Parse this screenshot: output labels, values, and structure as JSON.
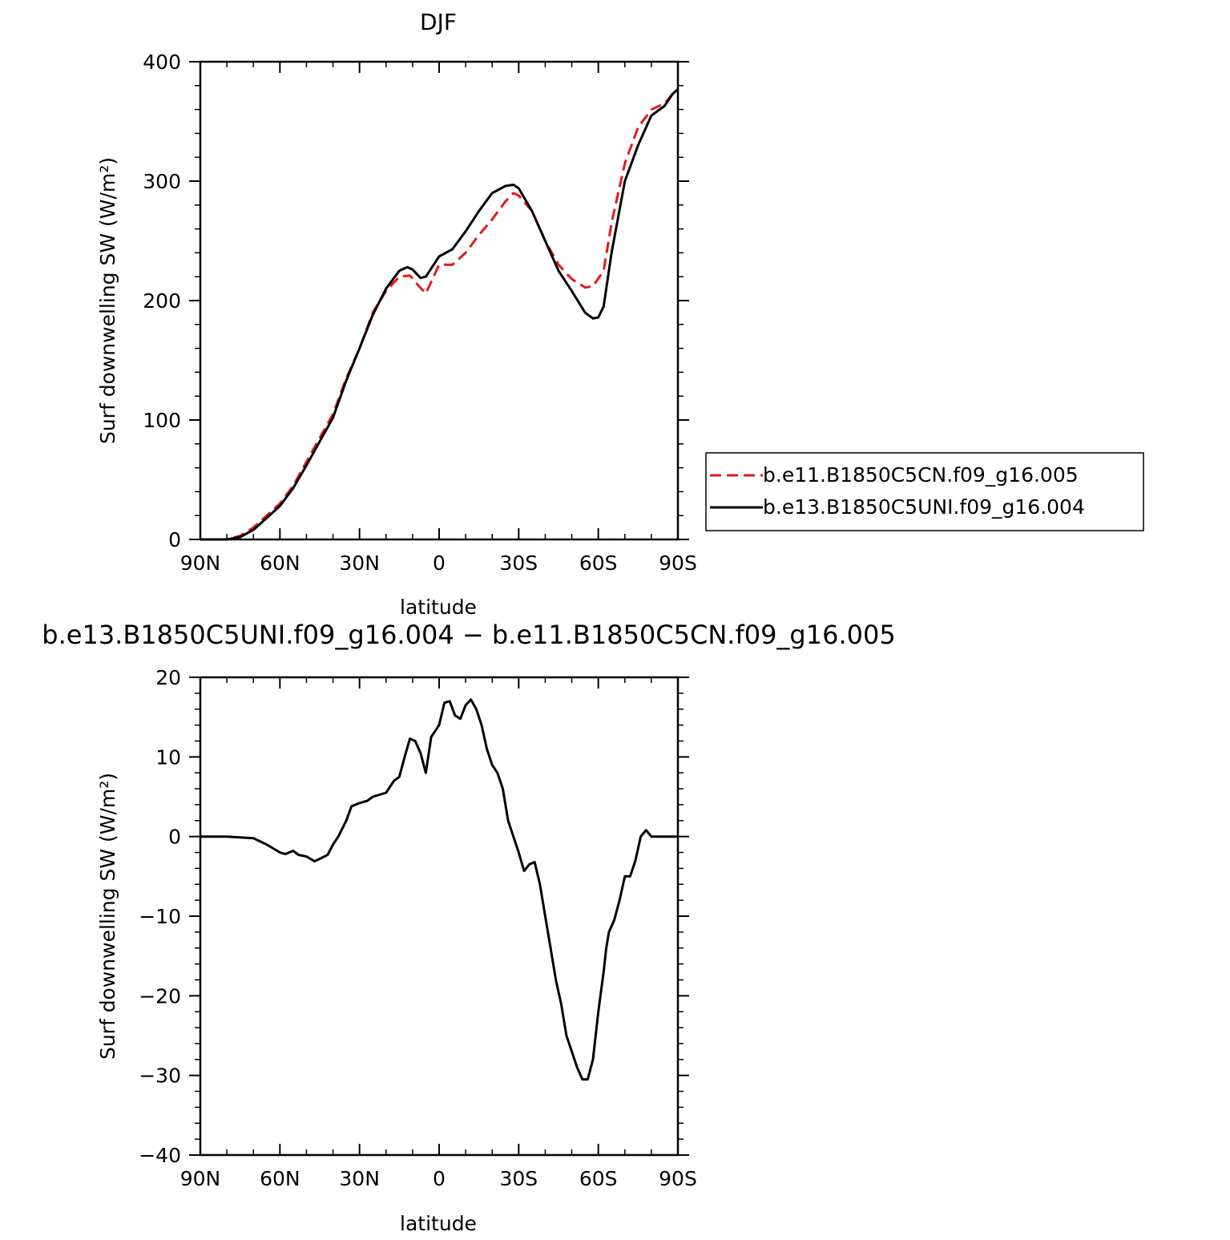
{
  "chart_data": [
    {
      "type": "line",
      "title": "DJF",
      "xlabel": "latitude",
      "ylabel": "Surf downwelling SW (W/m²)",
      "xlim": [
        -90,
        90
      ],
      "ylim": [
        0,
        400
      ],
      "x_ticks": [
        "90N",
        "60N",
        "30N",
        "0",
        "30S",
        "60S",
        "90S"
      ],
      "y_ticks": [
        "0",
        "100",
        "200",
        "300",
        "400"
      ],
      "grid": false,
      "legend_position": "right",
      "series": [
        {
          "name": "b.e11.B1850C5CN.f09_g16.005",
          "color": "#e31a1c",
          "dash": "dashed",
          "x": [
            -90,
            -80,
            -75,
            -70,
            -65,
            -60,
            -55,
            -50,
            -45,
            -40,
            -35,
            -30,
            -25,
            -20,
            -15,
            -11,
            -8,
            -5,
            0,
            5,
            10,
            15,
            20,
            25,
            28,
            30,
            35,
            40,
            45,
            50,
            55,
            58,
            62,
            65,
            70,
            75,
            80,
            85,
            88,
            90
          ],
          "y": [
            0,
            0,
            3,
            10,
            20,
            30,
            45,
            65,
            85,
            105,
            135,
            160,
            190,
            208,
            220,
            221,
            213,
            206,
            230,
            230,
            240,
            255,
            268,
            283,
            290,
            288,
            275,
            250,
            230,
            218,
            211,
            212,
            225,
            265,
            315,
            345,
            360,
            365,
            373,
            377
          ]
        },
        {
          "name": "b.e13.B1850C5UNI.f09_g16.004",
          "color": "#000000",
          "dash": "solid",
          "x": [
            -90,
            -80,
            -75,
            -70,
            -65,
            -60,
            -55,
            -50,
            -45,
            -40,
            -35,
            -30,
            -25,
            -20,
            -15,
            -12,
            -10,
            -7,
            -5,
            0,
            5,
            10,
            15,
            20,
            25,
            28,
            30,
            35,
            40,
            45,
            50,
            55,
            58,
            60,
            62,
            65,
            70,
            75,
            80,
            85,
            88,
            90
          ],
          "y": [
            0,
            0,
            2,
            8,
            18,
            28,
            43,
            62,
            82,
            102,
            133,
            160,
            188,
            210,
            225,
            228,
            226,
            219,
            220,
            237,
            243,
            258,
            275,
            290,
            296,
            297,
            294,
            275,
            250,
            225,
            208,
            190,
            185,
            186,
            195,
            240,
            300,
            330,
            355,
            363,
            373,
            377
          ]
        }
      ]
    },
    {
      "type": "line",
      "title": "b.e13.B1850C5UNI.f09_g16.004 − b.e11.B1850C5CN.f09_g16.005",
      "xlabel": "latitude",
      "ylabel": "Surf downwelling SW (W/m²)",
      "xlim": [
        -90,
        90
      ],
      "ylim": [
        -40,
        20
      ],
      "x_ticks": [
        "90N",
        "60N",
        "30N",
        "0",
        "30S",
        "60S",
        "90S"
      ],
      "y_ticks": [
        "−40",
        "−30",
        "−20",
        "−10",
        "0",
        "10",
        "20"
      ],
      "grid": false,
      "series": [
        {
          "color": "#000000",
          "dash": "solid",
          "x": [
            -90,
            -80,
            -70,
            -65,
            -60,
            -58,
            -55,
            -53,
            -50,
            -47,
            -45,
            -42,
            -40,
            -38,
            -35,
            -33,
            -30,
            -27,
            -25,
            -22,
            -20,
            -17,
            -15,
            -13,
            -11,
            -9,
            -7,
            -5,
            -3,
            0,
            2,
            4,
            6,
            8,
            10,
            12,
            14,
            16,
            18,
            20,
            22,
            24,
            26,
            28,
            30,
            32,
            34,
            36,
            38,
            40,
            42,
            44,
            46,
            48,
            50,
            52,
            54,
            56,
            58,
            60,
            62,
            63,
            64,
            66,
            68,
            70,
            72,
            74,
            76,
            78,
            80,
            82,
            84,
            86,
            88,
            90
          ],
          "y": [
            0,
            0,
            -0.2,
            -1,
            -2,
            -2.2,
            -1.8,
            -2.3,
            -2.5,
            -3.1,
            -2.8,
            -2.3,
            -1,
            0,
            2,
            3.8,
            4.2,
            4.5,
            5,
            5.3,
            5.5,
            7,
            7.5,
            10,
            12.3,
            12,
            10.5,
            8,
            12.5,
            14,
            16.8,
            17,
            15.2,
            14.8,
            16.5,
            17.2,
            16,
            14,
            11,
            9,
            8,
            6,
            2,
            0,
            -2,
            -4.3,
            -3.5,
            -3.2,
            -6,
            -10,
            -14,
            -18,
            -21,
            -25,
            -27,
            -29,
            -30.5,
            -30.5,
            -28,
            -22,
            -17,
            -14,
            -12,
            -10.5,
            -8,
            -5,
            -5,
            -3,
            0,
            0.8,
            0,
            0,
            0,
            0,
            0,
            0
          ]
        }
      ]
    }
  ]
}
